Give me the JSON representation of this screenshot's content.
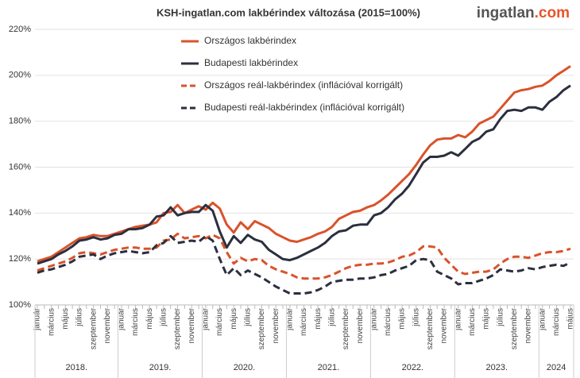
{
  "chart_data": {
    "type": "line",
    "title": "KSH-ingatlan.com lakbérindex változása (2015=100%)",
    "logo": {
      "name": "ingatlan",
      "tld": ".com"
    },
    "categories": [
      "január",
      null,
      "március",
      null,
      "május",
      null,
      "július",
      null,
      "szeptember",
      null,
      "november",
      null,
      "január",
      null,
      "március",
      null,
      "május",
      null,
      "július",
      null,
      "szeptember",
      null,
      "november",
      null,
      "január",
      null,
      "március",
      null,
      "május",
      null,
      "július",
      null,
      "szeptember",
      null,
      "november",
      null,
      "január",
      null,
      "március",
      null,
      "május",
      null,
      "július",
      null,
      "szeptember",
      null,
      "november",
      null,
      "január",
      null,
      "március",
      null,
      "május",
      null,
      "július",
      null,
      "szeptember",
      null,
      "november",
      null,
      "január",
      null,
      "március",
      null,
      "május",
      null,
      "július",
      null,
      "szeptember",
      null,
      "november",
      null,
      "január",
      null,
      "március",
      null,
      "május"
    ],
    "x_groups": [
      "2018.",
      "2019.",
      "2020.",
      "2021.",
      "2022.",
      "2023.",
      "2024"
    ],
    "x_group_sizes": [
      12,
      12,
      12,
      12,
      12,
      12,
      5
    ],
    "series": [
      {
        "name": "Országos lakbérindex",
        "color": "#d9532b",
        "style": "solid",
        "values": [
          119,
          120,
          121,
          123,
          125,
          127,
          129,
          129.5,
          130.5,
          130,
          130,
          131,
          132,
          133,
          134,
          134.5,
          135,
          136,
          140,
          140.5,
          143.5,
          140,
          141.5,
          143,
          141.5,
          144.5,
          142,
          135,
          131.5,
          136,
          133,
          136.5,
          135,
          133.5,
          131,
          129.5,
          128,
          127.5,
          128.5,
          129.5,
          131,
          132,
          134,
          137.5,
          139,
          140.5,
          141,
          142.5,
          143.5,
          145.5,
          148,
          151,
          154,
          157,
          161,
          165.5,
          169.5,
          172,
          172.5,
          172.5,
          174,
          173,
          175.5,
          179,
          180.5,
          182,
          185.5,
          189,
          192.5,
          193.5,
          194,
          195,
          195.5,
          197.5,
          200,
          202,
          204
        ]
      },
      {
        "name": "Budapesti lakbérindex",
        "color": "#2b2f3e",
        "style": "solid",
        "values": [
          118,
          119,
          120,
          122,
          123.5,
          125.5,
          128,
          128.5,
          129.5,
          128.5,
          129,
          130.5,
          131,
          133,
          133,
          133.5,
          135,
          138.5,
          139,
          142.5,
          139,
          140,
          140.5,
          140.5,
          143.5,
          141,
          132,
          125,
          130,
          127,
          130.5,
          128.5,
          127.5,
          124,
          122,
          120,
          119.5,
          120.5,
          122,
          123.5,
          125,
          127,
          130,
          132,
          132.5,
          134.5,
          135,
          135,
          139,
          140,
          142.5,
          146,
          148.5,
          152,
          157,
          162,
          164.5,
          164.5,
          165,
          166.5,
          165,
          168,
          171,
          172.5,
          175.5,
          176.5,
          181,
          184.5,
          185,
          184.5,
          186,
          186,
          185,
          188.5,
          190.5,
          193.5,
          195.5
        ]
      },
      {
        "name": "Országos reál-lakbérindex (inflációval korrigált)",
        "color": "#d9532b",
        "style": "dashed",
        "values": [
          115,
          116,
          117,
          118,
          119,
          120.5,
          122.5,
          123,
          122.5,
          122,
          123,
          124,
          124.5,
          125,
          125,
          124.5,
          124.5,
          125,
          128,
          128.5,
          131,
          129,
          129.5,
          130,
          129,
          130.5,
          129,
          123,
          118,
          120.5,
          119,
          120,
          119.5,
          117,
          115.5,
          114.5,
          113.5,
          112,
          111.5,
          111.5,
          111.5,
          112,
          113,
          114.5,
          116,
          117,
          117.5,
          117.5,
          118,
          118,
          118.5,
          119.5,
          121,
          121.5,
          123,
          125.5,
          125.5,
          125,
          120.5,
          117.5,
          114.5,
          113.5,
          114,
          114.5,
          114.5,
          115.5,
          118,
          120,
          121,
          121,
          120.5,
          121.5,
          122.5,
          123,
          123,
          123.5,
          124.5
        ]
      },
      {
        "name": "Budapesti reál-lakbérindex (inflációval korrigált)",
        "color": "#2b2f3e",
        "style": "dashed",
        "values": [
          114,
          115,
          115.5,
          116.5,
          117.5,
          119,
          121,
          121.5,
          122,
          120,
          121.5,
          122.5,
          123,
          123.5,
          123,
          122.5,
          123,
          126,
          127,
          130,
          127,
          127.5,
          128,
          127.5,
          130,
          128,
          120,
          113,
          116,
          113,
          115,
          113.5,
          112,
          110,
          108,
          106.5,
          105,
          105,
          105,
          105.5,
          106.5,
          108,
          110,
          110.5,
          111,
          111,
          111.5,
          111.5,
          112,
          113,
          113.5,
          115,
          116,
          117,
          119.5,
          120,
          119.5,
          114.5,
          113,
          111.5,
          109,
          109.5,
          109.5,
          110.5,
          111.5,
          113,
          115.5,
          115,
          114.5,
          115,
          116,
          115.5,
          116.5,
          117,
          117.5,
          117,
          118.5
        ]
      }
    ],
    "ylim": [
      100,
      220
    ],
    "yticks": [
      {
        "value": 100,
        "label": "100%"
      },
      {
        "value": 120,
        "label": "120%"
      },
      {
        "value": 140,
        "label": "140%"
      },
      {
        "value": 160,
        "label": "160%"
      },
      {
        "value": 180,
        "label": "180%"
      },
      {
        "value": 200,
        "label": "200%"
      },
      {
        "value": 220,
        "label": "220%"
      }
    ],
    "grid": true,
    "legend": "upper-left"
  }
}
